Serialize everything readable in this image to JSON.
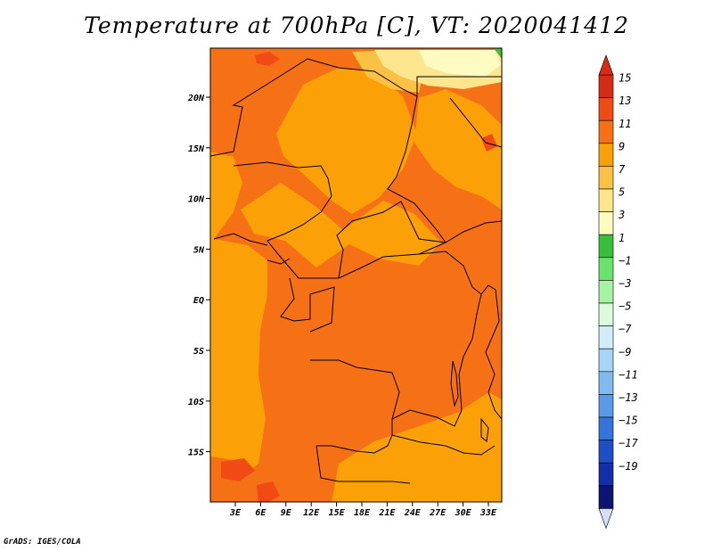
{
  "title": "Temperature at 700hPa [C], VT: 2020041412",
  "credit": "GrADS: IGES/COLA",
  "map": {
    "lat_labels": [
      "20N",
      "15N",
      "10N",
      "5N",
      "EQ",
      "5S",
      "10S",
      "15S"
    ],
    "lon_labels": [
      "3E",
      "6E",
      "9E",
      "12E",
      "15E",
      "18E",
      "21E",
      "24E",
      "27E",
      "30E",
      "33E"
    ],
    "region_colors": {
      "t9_11": "#fca008",
      "t11_13": "#f67015",
      "t7_9": "#fbc144",
      "t5_7": "#fde68d",
      "t3_5": "#fefbc0",
      "t1_3": "#43bc3a"
    }
  },
  "colorbar": {
    "labels": [
      "15",
      "13",
      "11",
      "9",
      "7",
      "5",
      "3",
      "1",
      "−1",
      "−3",
      "−5",
      "−7",
      "−9",
      "−11",
      "−13",
      "−15",
      "−17",
      "−19"
    ],
    "colors": [
      "#d72b16",
      "#f14a14",
      "#f67015",
      "#fca008",
      "#fbc144",
      "#fde68d",
      "#fefbc0",
      "#3abf3a",
      "#6be26b",
      "#a4f4a4",
      "#dcfbdc",
      "#d2ecfa",
      "#a8d5f5",
      "#7fbbee",
      "#5a9ae8",
      "#3474db",
      "#1f4fc4",
      "#152fa8",
      "#0c1573"
    ],
    "under_color": "#d9ddf7",
    "over_color": "#d72b16"
  }
}
